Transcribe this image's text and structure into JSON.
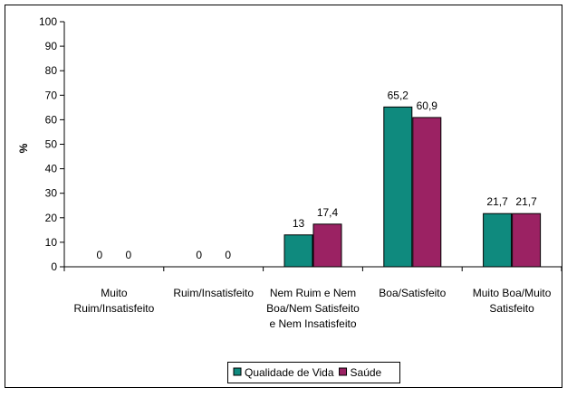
{
  "chart_data": {
    "type": "bar",
    "ylabel": "%",
    "ylim": [
      0,
      100
    ],
    "yticks": [
      0,
      10,
      20,
      30,
      40,
      50,
      60,
      70,
      80,
      90,
      100
    ],
    "grid": false,
    "legend_position": "bottom-center",
    "categories": [
      [
        "Muito",
        "Ruim/Insatisfeito"
      ],
      [
        "Ruim/Insatisfeito"
      ],
      [
        "Nem Ruim e Nem",
        "Boa/Nem Satisfeito",
        "e Nem Insatisfeito"
      ],
      [
        "Boa/Satisfeito"
      ],
      [
        "Muito Boa/Muito",
        "Satisfeito"
      ]
    ],
    "series": [
      {
        "name": "Qualidade de Vida",
        "color": "#0f8a7e",
        "values": [
          0,
          0,
          13,
          65.2,
          21.7
        ],
        "labels": [
          "0",
          "0",
          "13",
          "65,2",
          "21,7"
        ]
      },
      {
        "name": "Saúde",
        "color": "#9b2263",
        "values": [
          0,
          0,
          17.4,
          60.9,
          21.7
        ],
        "labels": [
          "0",
          "0",
          "17,4",
          "60,9",
          "21,7"
        ]
      }
    ]
  }
}
